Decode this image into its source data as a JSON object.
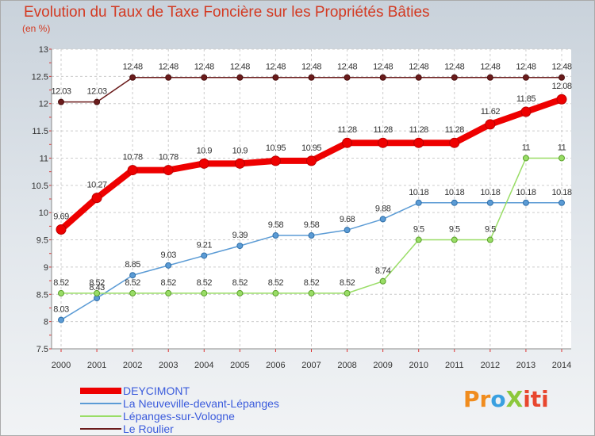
{
  "title": "Evolution du Taux de Taxe Foncière sur les Propriétés Bâties",
  "unit_label": "(en %)",
  "logo": {
    "p1": "Pr",
    "p2": "o",
    "p3": "X",
    "p4": "iti"
  },
  "chart_data": {
    "type": "line",
    "title": "Evolution du Taux de Taxe Foncière sur les Propriétés Bâties",
    "ylabel": "(en %)",
    "xlabel": "",
    "categories": [
      "2000",
      "2001",
      "2002",
      "2003",
      "2004",
      "2005",
      "2006",
      "2007",
      "2008",
      "2009",
      "2010",
      "2011",
      "2012",
      "2013",
      "2014"
    ],
    "ylim": [
      7.5,
      13
    ],
    "yticks": [
      "7.5",
      "8",
      "8.5",
      "9",
      "9.5",
      "10",
      "10.5",
      "11",
      "11.5",
      "12",
      "12.5",
      "13"
    ],
    "series": [
      {
        "name": "DEYCIMONT",
        "color": "#ee0000",
        "values": [
          9.69,
          10.27,
          10.78,
          10.78,
          10.9,
          10.9,
          10.95,
          10.95,
          11.28,
          11.28,
          11.28,
          11.28,
          11.62,
          11.85,
          12.08
        ],
        "labels": [
          "9.69",
          "10.27",
          "10.78",
          "10.78",
          "10.9",
          "10.9",
          "10.95",
          "10.95",
          "11.28",
          "11.28",
          "11.28",
          "11.28",
          "11.62",
          "11.85",
          "12.08"
        ]
      },
      {
        "name": "La Neuveville-devant-Lépanges",
        "color": "#5b9bd5",
        "values": [
          8.03,
          8.43,
          8.85,
          9.03,
          9.21,
          9.39,
          9.58,
          9.58,
          9.68,
          9.88,
          10.18,
          10.18,
          10.18,
          10.18,
          10.18
        ],
        "labels": [
          "8.03",
          "8.43",
          "8.85",
          "9.03",
          "9.21",
          "9.39",
          "9.58",
          "9.58",
          "9.68",
          "9.88",
          "10.18",
          "10.18",
          "10.18",
          "10.18",
          "10.18"
        ]
      },
      {
        "name": "Lépanges-sur-Vologne",
        "color": "#99dd66",
        "values": [
          8.52,
          8.52,
          8.52,
          8.52,
          8.52,
          8.52,
          8.52,
          8.52,
          8.52,
          8.74,
          9.5,
          9.5,
          9.5,
          11,
          11
        ],
        "labels": [
          "8.52",
          "8.52",
          "8.52",
          "8.52",
          "8.52",
          "8.52",
          "8.52",
          "8.52",
          "8.52",
          "8.74",
          "9.5",
          "9.5",
          "9.5",
          "11",
          "11"
        ]
      },
      {
        "name": "Le Roulier",
        "color": "#6b1c1c",
        "values": [
          12.03,
          12.03,
          12.48,
          12.48,
          12.48,
          12.48,
          12.48,
          12.48,
          12.48,
          12.48,
          12.48,
          12.48,
          12.48,
          12.48,
          12.48
        ],
        "labels": [
          "12.03",
          "12.03",
          "12.48",
          "12.48",
          "12.48",
          "12.48",
          "12.48",
          "12.48",
          "12.48",
          "12.48",
          "12.48",
          "12.48",
          "12.48",
          "12.48",
          "12.48"
        ]
      }
    ],
    "legend_position": "bottom-left"
  }
}
